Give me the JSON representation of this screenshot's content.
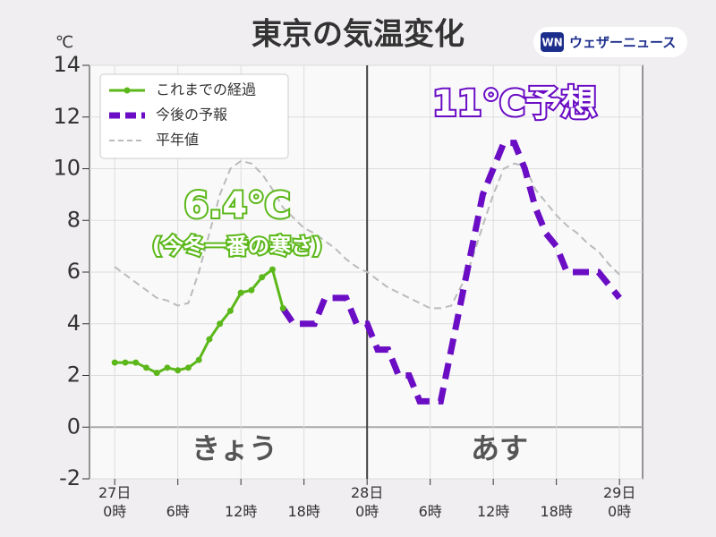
{
  "chart_data": {
    "type": "line",
    "title": "東京の気温変化",
    "y_unit": "℃",
    "logo": "ウェザーニュース",
    "logo_mark": "WN",
    "x": [
      0,
      1,
      2,
      3,
      4,
      5,
      6,
      7,
      8,
      9,
      10,
      11,
      12,
      13,
      14,
      15,
      16,
      17,
      18,
      19,
      20,
      21,
      22,
      23,
      24,
      25,
      26,
      27,
      28,
      29,
      30,
      31,
      32,
      33,
      34,
      35,
      36,
      37,
      38,
      39,
      40,
      41,
      42,
      43,
      44,
      45,
      46,
      47,
      48
    ],
    "series": [
      {
        "name": "これまでの経過",
        "color": "#5cb81a",
        "style": "solid-marker",
        "values": [
          2.5,
          2.5,
          2.5,
          2.3,
          2.1,
          2.3,
          2.2,
          2.3,
          2.6,
          3.4,
          4.0,
          4.5,
          5.2,
          5.3,
          5.8,
          6.1,
          4.6,
          null,
          null,
          null,
          null,
          null,
          null,
          null,
          null,
          null,
          null,
          null,
          null,
          null,
          null,
          null,
          null,
          null,
          null,
          null,
          null,
          null,
          null,
          null,
          null,
          null,
          null,
          null,
          null,
          null,
          null,
          null,
          null
        ]
      },
      {
        "name": "今後の予報",
        "color": "#6a0dc4",
        "style": "thick-dash",
        "values": [
          null,
          null,
          null,
          null,
          null,
          null,
          null,
          null,
          null,
          null,
          null,
          null,
          null,
          null,
          null,
          null,
          4.6,
          4.0,
          4.0,
          4.0,
          5.0,
          5.0,
          5.0,
          4.0,
          4.0,
          3.0,
          3.0,
          2.0,
          2.0,
          1.0,
          1.0,
          1.0,
          3.0,
          5.0,
          7.0,
          9.0,
          10.0,
          11.0,
          11.0,
          10.0,
          8.5,
          7.5,
          7.0,
          6.0,
          6.0,
          6.0,
          6.0,
          5.5,
          5.0
        ]
      },
      {
        "name": "平年値",
        "color": "#bbbbbb",
        "style": "thin-dash",
        "values": [
          6.2,
          5.9,
          5.6,
          5.3,
          5.0,
          4.9,
          4.7,
          4.8,
          6.0,
          7.5,
          9.0,
          10.0,
          10.3,
          10.2,
          9.8,
          9.2,
          8.5,
          8.1,
          7.7,
          7.5,
          7.2,
          6.9,
          6.5,
          6.2,
          6.0,
          5.7,
          5.4,
          5.2,
          5.0,
          4.8,
          4.6,
          4.6,
          4.7,
          5.5,
          6.5,
          7.8,
          9.0,
          10.0,
          10.2,
          10.1,
          9.2,
          8.7,
          8.2,
          7.8,
          7.5,
          7.1,
          6.8,
          6.3,
          5.9
        ]
      }
    ],
    "xlim": [
      -2.4,
      50.2
    ],
    "ylim": [
      -2,
      14
    ],
    "yticks": [
      -2,
      0,
      2,
      4,
      6,
      8,
      10,
      12,
      14
    ],
    "xticks": [
      {
        "value": 0,
        "label": "27日\n0時"
      },
      {
        "value": 6,
        "label": "6時"
      },
      {
        "value": 12,
        "label": "12時"
      },
      {
        "value": 18,
        "label": "18時"
      },
      {
        "value": 24,
        "label": "28日\n0時"
      },
      {
        "value": 30,
        "label": "6時"
      },
      {
        "value": 36,
        "label": "12時"
      },
      {
        "value": 42,
        "label": "18時"
      },
      {
        "value": 48,
        "label": "29日\n0時"
      }
    ],
    "divider_x": 24,
    "grid": true,
    "legend": "upper left",
    "annotations": [
      "6.4℃",
      "(今冬一番の寒さ)",
      "11℃予想",
      "きょう",
      "あす"
    ]
  }
}
